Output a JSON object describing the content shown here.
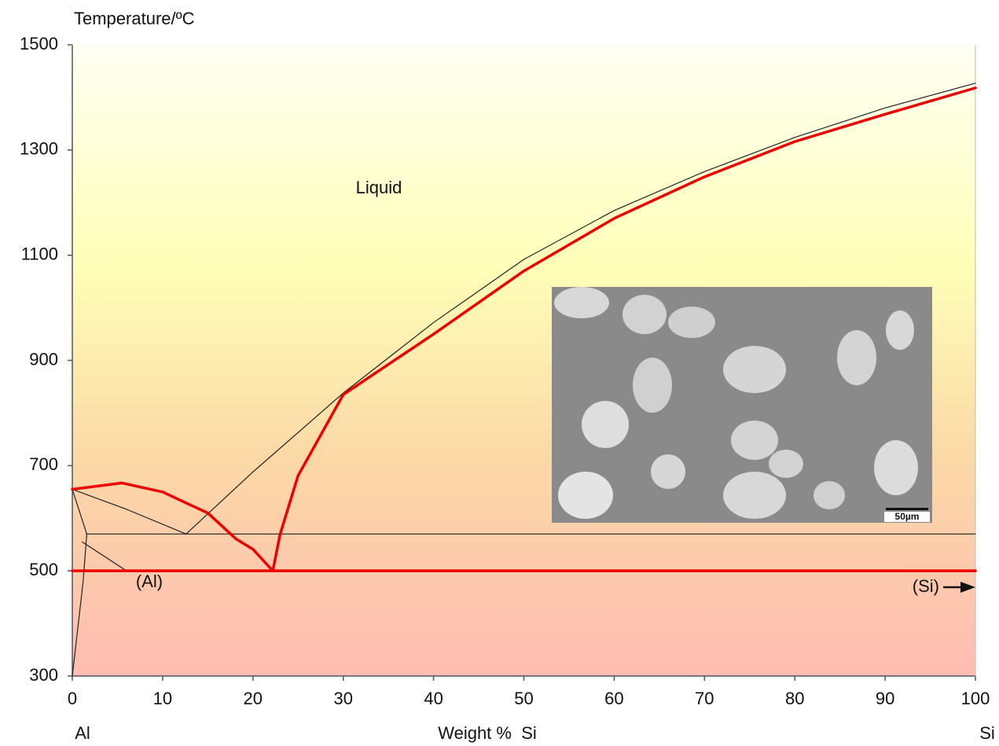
{
  "chart_data": {
    "type": "line",
    "title": "Temperature/ºC",
    "x_label": "Weight %  Si",
    "x_left_label": "Al",
    "x_right_label": "Si",
    "annotations": [
      "Liquid",
      "(Al)",
      "(Si)"
    ],
    "inset_label": "50µm",
    "xlim": [
      0,
      100
    ],
    "ylim": [
      300,
      1500
    ],
    "xticks": [
      0,
      10,
      20,
      30,
      40,
      50,
      60,
      70,
      80,
      90,
      100
    ],
    "yticks": [
      300,
      500,
      700,
      900,
      1100,
      1300,
      1500
    ],
    "series": [
      {
        "color": "#222222",
        "width": 1.2,
        "x": [
          0,
          6,
          12.6
        ],
        "values": [
          655,
          617,
          570
        ]
      },
      {
        "color": "#222222",
        "width": 1.2,
        "x": [
          12.6,
          20,
          30,
          40,
          50,
          60,
          70,
          80,
          90,
          100
        ],
        "values": [
          570,
          688,
          838,
          972,
          1092,
          1185,
          1259,
          1324,
          1380,
          1427
        ]
      },
      {
        "color": "#222222",
        "width": 1.2,
        "x": [
          1.6,
          100
        ],
        "values": [
          570,
          570
        ]
      },
      {
        "color": "#222222",
        "width": 1.2,
        "x": [
          0,
          1.6
        ],
        "values": [
          655,
          570
        ]
      },
      {
        "color": "#222222",
        "width": 1.2,
        "x": [
          1.6,
          1.2,
          0.6,
          0
        ],
        "values": [
          570,
          480,
          390,
          300
        ]
      },
      {
        "color": "#222222",
        "width": 1.2,
        "x": [
          1.1,
          6
        ],
        "values": [
          555,
          500
        ]
      },
      {
        "color": "#ee0000",
        "width": 3.5,
        "x": [
          0,
          100
        ],
        "values": [
          500,
          500
        ]
      },
      {
        "color": "#ee0000",
        "width": 3.5,
        "x": [
          0,
          5.5,
          10,
          12.6,
          15,
          18.1,
          20,
          22.2
        ],
        "values": [
          655,
          667,
          650,
          629,
          610,
          561,
          541,
          500
        ]
      },
      {
        "color": "#ee0000",
        "width": 3.5,
        "x": [
          22.2,
          23,
          25,
          30,
          40,
          50,
          60,
          70,
          80,
          90,
          100
        ],
        "values": [
          500,
          569,
          681,
          835,
          950,
          1070,
          1170,
          1249,
          1316,
          1368,
          1418
        ]
      }
    ]
  }
}
